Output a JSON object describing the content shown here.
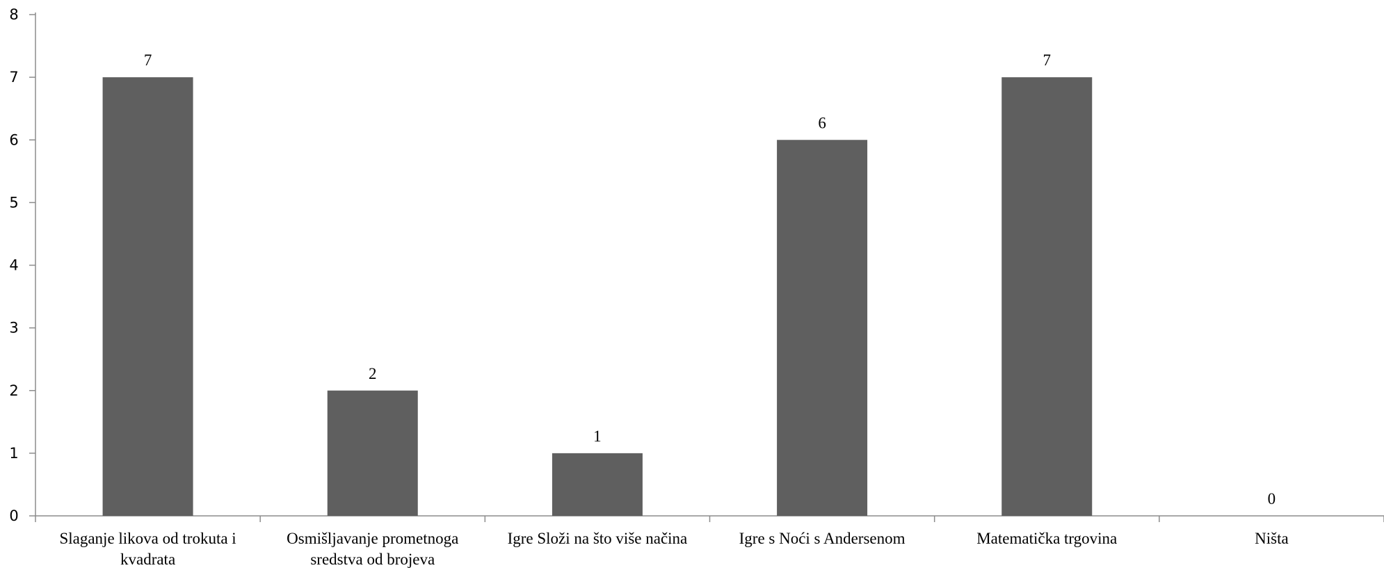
{
  "chart_data": {
    "type": "bar",
    "categories": [
      [
        "Slaganje likova od trokuta i",
        "kvadrata"
      ],
      [
        "Osmišljavanje prometnoga",
        "sredstva od brojeva"
      ],
      [
        "Igre Složi na što više načina"
      ],
      [
        "Igre s Noći s Andersenom"
      ],
      [
        "Matematička trgovina"
      ],
      [
        "Ništa"
      ]
    ],
    "values": [
      7,
      2,
      1,
      6,
      7,
      0
    ],
    "data_labels": [
      "7",
      "2",
      "1",
      "6",
      "7",
      "0"
    ],
    "ylim": [
      0,
      8
    ],
    "yticks": [
      "0",
      "1",
      "2",
      "3",
      "4",
      "5",
      "6",
      "7",
      "8"
    ],
    "bar_color": "#5f5f5f",
    "axis_color": "#8c8c8c",
    "grid": false,
    "legend": "none"
  }
}
